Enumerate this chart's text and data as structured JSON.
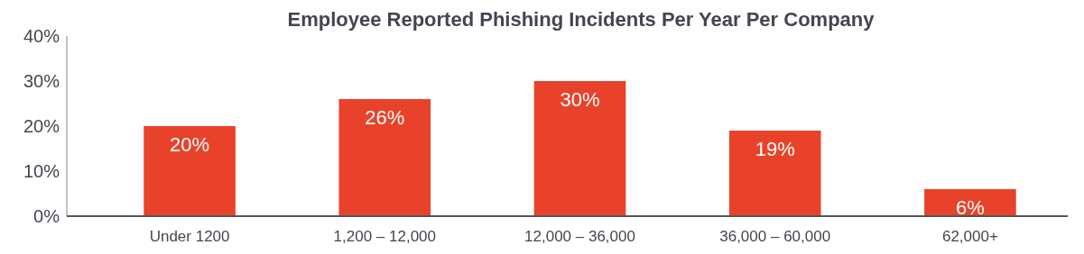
{
  "chart_data": {
    "type": "bar",
    "title": "Employee Reported Phishing Incidents Per Year Per Company",
    "categories": [
      "Under 1200",
      "1,200 – 12,000",
      "12,000 – 36,000",
      "36,000 – 60,000",
      "62,000+"
    ],
    "values": [
      20,
      26,
      30,
      19,
      6
    ],
    "color": "#e8432a",
    "value_labels": [
      "20%",
      "26%",
      "30%",
      "19%",
      "6%"
    ],
    "ylim": [
      0,
      40
    ],
    "yticks": [
      {
        "value": 0,
        "label": "0%"
      },
      {
        "value": 10,
        "label": "10%"
      },
      {
        "value": 20,
        "label": "20%"
      },
      {
        "value": 30,
        "label": "30%"
      },
      {
        "value": 40,
        "label": "40%"
      }
    ],
    "grid": false
  }
}
